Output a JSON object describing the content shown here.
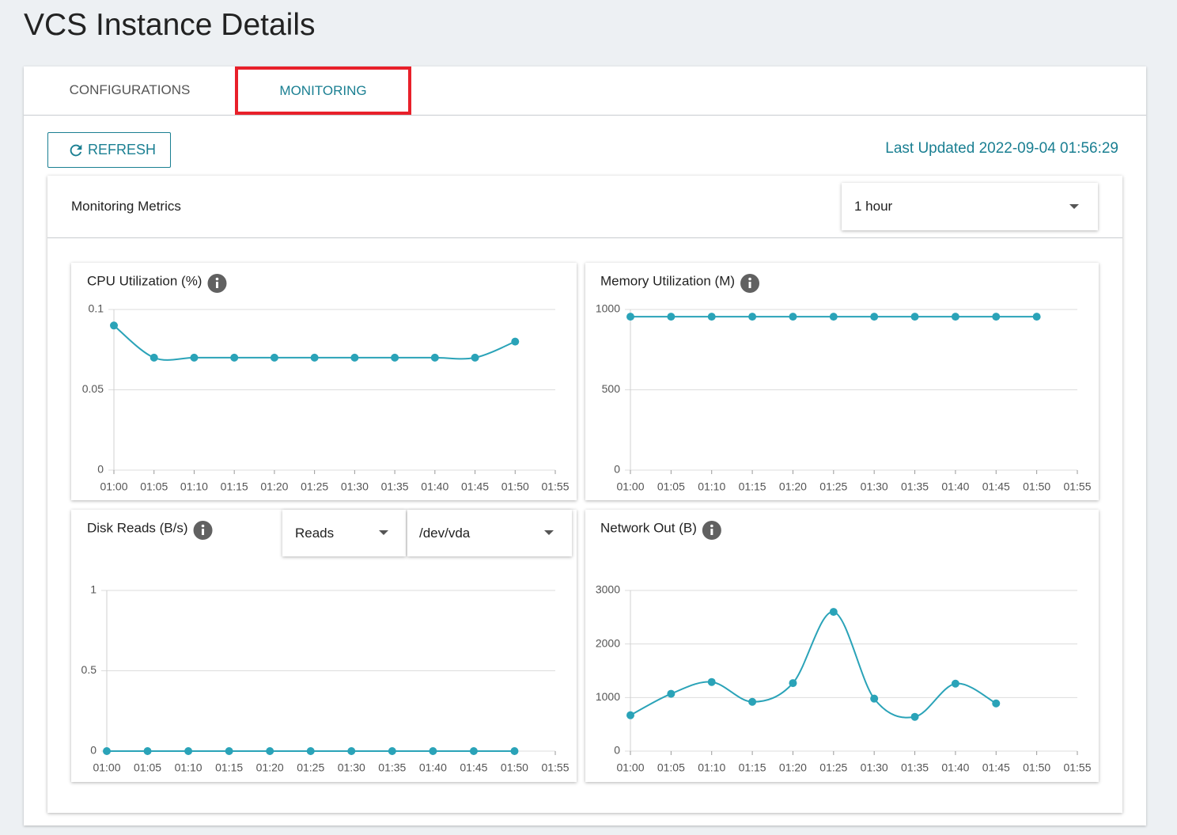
{
  "header": {
    "title": "VCS Instance Details"
  },
  "tabs": [
    "CONFIGURATIONS",
    "MONITORING"
  ],
  "toolbar": {
    "refresh": "REFRESH",
    "last_updated": "Last Updated 2022-09-04 01:56:29"
  },
  "panel": {
    "title": "Monitoring Metrics",
    "range": "1 hour"
  },
  "disk_selects": [
    "Reads",
    "/dev/vda"
  ],
  "chart_data": [
    {
      "type": "line",
      "title": "CPU Utilization (%)",
      "categories": [
        "01:00",
        "01:05",
        "01:10",
        "01:15",
        "01:20",
        "01:25",
        "01:30",
        "01:35",
        "01:40",
        "01:45",
        "01:50",
        "01:55"
      ],
      "values": [
        0.09,
        0.07,
        0.07,
        0.07,
        0.07,
        0.07,
        0.07,
        0.07,
        0.07,
        0.07,
        0.08,
        null
      ],
      "color": "#2aa3b8",
      "ylim": [
        0,
        0.1
      ],
      "yticks": [
        0,
        0.05,
        0.1
      ],
      "grid": true
    },
    {
      "type": "line",
      "title": "Memory Utilization (M)",
      "categories": [
        "01:00",
        "01:05",
        "01:10",
        "01:15",
        "01:20",
        "01:25",
        "01:30",
        "01:35",
        "01:40",
        "01:45",
        "01:50",
        "01:55"
      ],
      "values": [
        955,
        955,
        955,
        955,
        955,
        955,
        955,
        955,
        955,
        955,
        955,
        null
      ],
      "color": "#2aa3b8",
      "ylim": [
        0,
        1000
      ],
      "yticks": [
        0,
        500,
        1000
      ],
      "grid": true
    },
    {
      "type": "line",
      "title": "Disk Reads (B/s)",
      "categories": [
        "01:00",
        "01:05",
        "01:10",
        "01:15",
        "01:20",
        "01:25",
        "01:30",
        "01:35",
        "01:40",
        "01:45",
        "01:50",
        "01:55"
      ],
      "values": [
        0,
        0,
        0,
        0,
        0,
        0,
        0,
        0,
        0,
        0,
        0,
        null
      ],
      "color": "#2aa3b8",
      "ylim": [
        0,
        1
      ],
      "yticks": [
        0,
        0.5,
        1
      ],
      "grid": true
    },
    {
      "type": "line",
      "title": "Network Out (B)",
      "categories": [
        "01:00",
        "01:05",
        "01:10",
        "01:15",
        "01:20",
        "01:25",
        "01:30",
        "01:35",
        "01:40",
        "01:45",
        "01:50",
        "01:55"
      ],
      "values": [
        670,
        1070,
        1290,
        920,
        1270,
        2600,
        980,
        640,
        1260,
        890,
        null,
        null
      ],
      "color": "#2aa3b8",
      "ylim": [
        0,
        3000
      ],
      "yticks": [
        0,
        1000,
        2000,
        3000
      ],
      "grid": true
    }
  ]
}
